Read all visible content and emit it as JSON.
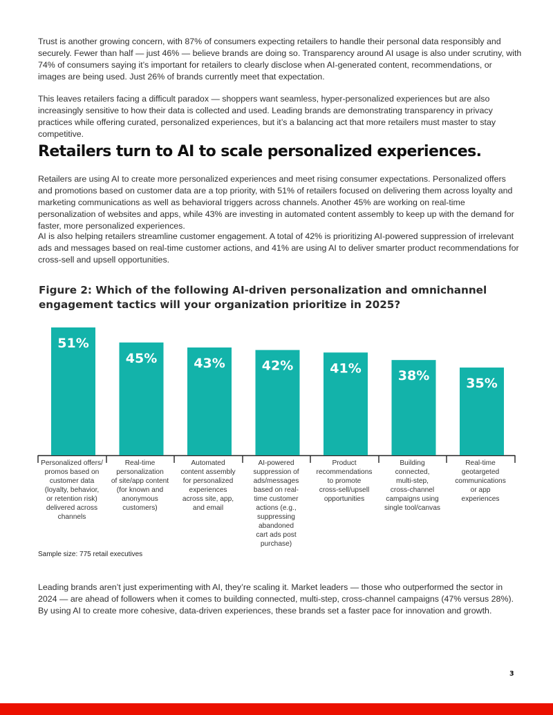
{
  "paragraphs": {
    "p1": "Trust is another growing concern, with 87% of consumers expecting retailers to handle their personal data responsibly and securely. Fewer than half — just 46% — believe brands are doing so. Transparency around AI usage is also under scrutiny, with 74% of consumers saying it’s important for retailers to clearly disclose when AI-generated content, recommendations, or images are being used. Just 26% of brands currently meet that expectation.",
    "p2": "This leaves retailers facing a difficult paradox — shoppers want seamless, hyper-personalized experiences but are also increasingly sensitive to how their data is collected and used. Leading brands are demonstrating transparency in privacy practices while offering curated, personalized experiences, but it’s a balancing act that more retailers must master to stay competitive.",
    "p3": "Retailers are using AI to create more personalized experiences and meet rising consumer expectations. Personalized offers and promotions based on customer data are a top priority, with 51% of retailers focused on delivering them across loyalty and marketing communications as well as behavioral triggers across channels. Another 45% are working on real-time personalization of websites and apps, while 43% are investing in automated content assembly to keep up with the demand for faster, more personalized experiences.",
    "p4": "AI is also helping retailers streamline customer engagement. A total of 42% is prioritizing AI-powered suppression of irrelevant ads and messages based on real-time customer actions, and 41% are using AI to deliver smarter product recommendations for cross-sell and upsell opportunities.",
    "p5": "Leading brands aren’t just experimenting with AI, they’re scaling it. Market leaders — those who outperformed the sector in 2024 — are ahead of followers when it comes to building connected, multi-step, cross-channel campaigns (47% versus 28%). By using AI to create more cohesive, data-driven experiences, these brands set a faster pace for innovation and growth."
  },
  "section_heading": "Retailers turn to AI to scale personalized experiences.",
  "figure": {
    "title": "Figure 2: Which of the following AI-driven personalization and omnichannel engagement tactics will your organization prioritize in 2025?",
    "sample_note": "Sample size: 775 retail executives"
  },
  "chart_data": {
    "type": "bar",
    "title": "Figure 2: Which of the following AI-driven personalization and omnichannel engagement tactics will your organization prioritize in 2025?",
    "categories": [
      "Personalized offers/ promos based on customer data (loyalty, behavior, or retention risk) delivered across channels",
      "Real-time personalization of site/app content (for known and anonymous customers)",
      "Automated content assembly for personalized experiences across site, app, and email",
      "AI-powered suppression of ads/messages based on real-time customer actions (e.g., suppressing abandoned cart ads post purchase)",
      "Product recommendations to promote cross-sell/upsell opportunities",
      "Building connected, multi-step, cross-channel campaigns using single tool/canvas",
      "Real-time geotargeted communications or app experiences"
    ],
    "category_lines": [
      [
        "Personalized offers/",
        "promos based on",
        "customer data",
        "(loyalty, behavior,",
        "or retention risk)",
        "delivered across",
        "channels"
      ],
      [
        "Real-time",
        "personalization",
        "of site/app content",
        "(for known and",
        "anonymous",
        "customers)"
      ],
      [
        "Automated",
        "content assembly",
        "for personalized",
        "experiences",
        "across site, app,",
        "and email"
      ],
      [
        "AI-powered",
        "suppression of",
        "ads/messages",
        "based on real-",
        "time customer",
        "actions (e.g.,",
        "suppressing",
        "abandoned",
        "cart ads post",
        "purchase)"
      ],
      [
        "Product",
        "recommendations",
        "to promote",
        "cross-sell/upsell",
        "opportunities"
      ],
      [
        "Building",
        "connected,",
        "multi-step,",
        "cross-channel",
        "campaigns using",
        "single tool/canvas"
      ],
      [
        "Real-time",
        "geotargeted",
        "communications",
        "or app",
        "experiences"
      ]
    ],
    "values": [
      51,
      45,
      43,
      42,
      41,
      38,
      35
    ],
    "data_labels": [
      "51%",
      "45%",
      "43%",
      "42%",
      "41%",
      "38%",
      "35%"
    ],
    "unit": "%",
    "ylim": [
      0,
      51
    ],
    "grid": false,
    "legend": "none",
    "bar_color": "#13b3aa",
    "label_color": "#ffffff"
  },
  "page_number": "3",
  "colors": {
    "accent": "#eb1000",
    "bar": "#13b3aa"
  }
}
